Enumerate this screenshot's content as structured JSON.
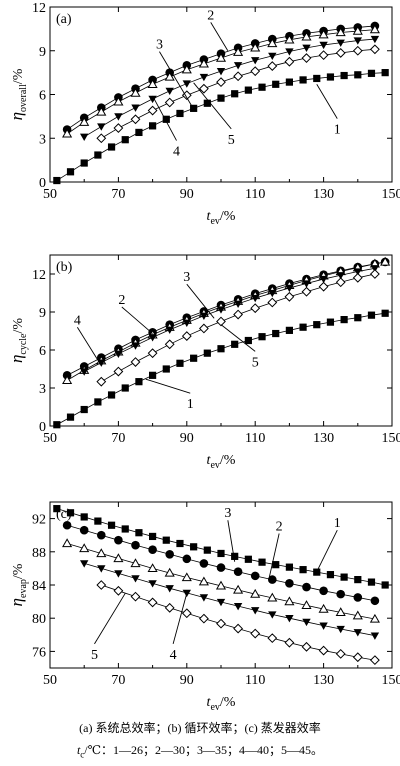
{
  "chart_data": [
    {
      "type": "scatter",
      "panel_label": "(a)",
      "xlabel_main": "t",
      "xlabel_sub": "ev",
      "xlabel_unit": "/%",
      "ylabel_main": "η",
      "ylabel_sub": "overall",
      "ylabel_unit": "/%",
      "xlim": [
        50,
        150
      ],
      "ylim": [
        0,
        12
      ],
      "xticks": [
        50,
        70,
        90,
        110,
        130,
        150
      ],
      "yticks": [
        0,
        3,
        6,
        9,
        12
      ],
      "series": [
        {
          "name": "1",
          "marker": "square-filled",
          "x": [
            52,
            56,
            60,
            64,
            68,
            72,
            76,
            80,
            84,
            88,
            92,
            96,
            100,
            104,
            108,
            112,
            116,
            120,
            124,
            128,
            132,
            136,
            140,
            144,
            148
          ],
          "y": [
            0.1,
            0.7,
            1.3,
            1.85,
            2.4,
            2.9,
            3.4,
            3.85,
            4.3,
            4.7,
            5.05,
            5.4,
            5.75,
            6.05,
            6.3,
            6.5,
            6.7,
            6.85,
            7.0,
            7.1,
            7.2,
            7.3,
            7.35,
            7.45,
            7.5
          ]
        },
        {
          "name": "2",
          "marker": "circle-filled",
          "x": [
            55,
            60,
            65,
            70,
            75,
            80,
            85,
            90,
            95,
            100,
            105,
            110,
            115,
            120,
            125,
            130,
            135,
            140,
            145
          ],
          "y": [
            3.6,
            4.4,
            5.1,
            5.8,
            6.4,
            7.0,
            7.5,
            8.0,
            8.4,
            8.8,
            9.2,
            9.5,
            9.8,
            10.0,
            10.2,
            10.35,
            10.5,
            10.6,
            10.7
          ]
        },
        {
          "name": "3",
          "marker": "triangle-open",
          "x": [
            55,
            60,
            65,
            70,
            75,
            80,
            85,
            90,
            95,
            100,
            105,
            110,
            115,
            120,
            125,
            130,
            135,
            140,
            145
          ],
          "y": [
            3.3,
            4.1,
            4.8,
            5.5,
            6.1,
            6.7,
            7.2,
            7.7,
            8.1,
            8.5,
            8.9,
            9.2,
            9.5,
            9.75,
            9.95,
            10.1,
            10.25,
            10.35,
            10.45
          ]
        },
        {
          "name": "4",
          "marker": "triangle-down-filled",
          "x": [
            60,
            65,
            70,
            75,
            80,
            85,
            90,
            95,
            100,
            105,
            110,
            115,
            120,
            125,
            130,
            135,
            140,
            145
          ],
          "y": [
            3.1,
            3.8,
            4.5,
            5.1,
            5.7,
            6.25,
            6.75,
            7.2,
            7.6,
            8.0,
            8.35,
            8.65,
            8.95,
            9.2,
            9.4,
            9.55,
            9.7,
            9.8
          ]
        },
        {
          "name": "5",
          "marker": "diamond-open",
          "x": [
            65,
            70,
            75,
            80,
            85,
            90,
            95,
            100,
            105,
            110,
            115,
            120,
            125,
            130,
            135,
            140,
            145
          ],
          "y": [
            3.0,
            3.7,
            4.3,
            4.9,
            5.45,
            5.95,
            6.4,
            6.85,
            7.25,
            7.6,
            7.95,
            8.25,
            8.5,
            8.7,
            8.85,
            9.0,
            9.1
          ]
        }
      ],
      "annotations": [
        {
          "text": "1",
          "x": 134,
          "y": 4.0,
          "to": [
            128,
            6.7
          ]
        },
        {
          "text": "2",
          "x": 97,
          "y": 10.6,
          "to": [
            102,
            9.0
          ]
        },
        {
          "text": "3",
          "x": 82,
          "y": 8.6,
          "to": [
            92,
            5.0
          ]
        },
        {
          "text": "4",
          "x": 87,
          "y": 2.5,
          "to": [
            80,
            5.9
          ]
        },
        {
          "text": "5",
          "x": 103,
          "y": 3.3,
          "to": [
            92,
            6.8
          ]
        }
      ]
    },
    {
      "type": "scatter",
      "panel_label": "(b)",
      "xlabel_main": "t",
      "xlabel_sub": "ev",
      "xlabel_unit": "/%",
      "ylabel_main": "η",
      "ylabel_sub": "cycle",
      "ylabel_unit": "/%",
      "xlim": [
        50,
        150
      ],
      "ylim": [
        0,
        13.5
      ],
      "xticks": [
        50,
        70,
        90,
        110,
        130,
        150
      ],
      "yticks": [
        0,
        3,
        6,
        9,
        12
      ],
      "series": [
        {
          "name": "1",
          "marker": "square-filled",
          "x": [
            52,
            56,
            60,
            64,
            68,
            72,
            76,
            80,
            84,
            88,
            92,
            96,
            100,
            104,
            108,
            112,
            116,
            120,
            124,
            128,
            132,
            136,
            140,
            144,
            148
          ],
          "y": [
            0.1,
            0.7,
            1.3,
            1.9,
            2.45,
            3.0,
            3.5,
            4.0,
            4.5,
            4.95,
            5.35,
            5.75,
            6.1,
            6.45,
            6.75,
            7.05,
            7.3,
            7.55,
            7.8,
            8.0,
            8.2,
            8.4,
            8.55,
            8.75,
            8.9
          ]
        },
        {
          "name": "2",
          "marker": "circle-filled",
          "x": [
            55,
            60,
            65,
            70,
            75,
            80,
            85,
            90,
            95,
            100,
            105,
            110,
            115,
            120,
            125,
            130,
            135,
            140,
            145,
            148
          ],
          "y": [
            4.0,
            4.7,
            5.4,
            6.1,
            6.8,
            7.4,
            8.0,
            8.55,
            9.05,
            9.55,
            10.0,
            10.45,
            10.85,
            11.25,
            11.6,
            11.95,
            12.25,
            12.55,
            12.8,
            12.95
          ]
        },
        {
          "name": "3",
          "marker": "triangle-open",
          "x": [
            55,
            60,
            65,
            70,
            75,
            80,
            85,
            90,
            95,
            100,
            105,
            110,
            115,
            120,
            125,
            130,
            135,
            140,
            145,
            148
          ],
          "y": [
            3.6,
            4.4,
            5.15,
            5.85,
            6.55,
            7.2,
            7.8,
            8.35,
            8.9,
            9.4,
            9.85,
            10.3,
            10.7,
            11.1,
            11.5,
            11.85,
            12.2,
            12.5,
            12.8,
            12.95
          ]
        },
        {
          "name": "4",
          "marker": "triangle-down-filled",
          "x": [
            60,
            65,
            70,
            75,
            80,
            85,
            90,
            95,
            100,
            105,
            110,
            115,
            120,
            125,
            130,
            135,
            140,
            145
          ],
          "y": [
            4.3,
            5.0,
            5.7,
            6.35,
            7.0,
            7.6,
            8.15,
            8.7,
            9.2,
            9.65,
            10.1,
            10.5,
            10.9,
            11.25,
            11.6,
            11.9,
            12.2,
            12.45
          ]
        },
        {
          "name": "5",
          "marker": "diamond-open",
          "x": [
            65,
            70,
            75,
            80,
            85,
            90,
            95,
            100,
            105,
            110,
            115,
            120,
            125,
            130,
            135,
            140,
            145
          ],
          "y": [
            3.5,
            4.3,
            5.05,
            5.75,
            6.45,
            7.1,
            7.7,
            8.25,
            8.8,
            9.3,
            9.75,
            10.2,
            10.6,
            11.0,
            11.35,
            11.7,
            12.0
          ]
        }
      ],
      "annotations": [
        {
          "text": "1",
          "x": 91,
          "y": 2.2,
          "to": [
            78,
            3.7
          ]
        },
        {
          "text": "2",
          "x": 71,
          "y": 9.0,
          "to": [
            80,
            7.3
          ]
        },
        {
          "text": "3",
          "x": 90,
          "y": 10.8,
          "to": [
            98,
            8.5
          ]
        },
        {
          "text": "4",
          "x": 58,
          "y": 7.4,
          "to": [
            64,
            5.2
          ]
        },
        {
          "text": "5",
          "x": 110,
          "y": 5.5,
          "to": [
            100,
            8.0
          ]
        }
      ]
    },
    {
      "type": "scatter",
      "panel_label": "(c)",
      "xlabel_main": "t",
      "xlabel_sub": "ev",
      "xlabel_unit": "/%",
      "ylabel_main": "η",
      "ylabel_sub": "evap",
      "ylabel_unit": "/%",
      "xlim": [
        50,
        150
      ],
      "ylim": [
        74,
        94
      ],
      "xticks": [
        50,
        70,
        90,
        110,
        130,
        150
      ],
      "yticks": [
        76,
        80,
        84,
        88,
        92
      ],
      "series": [
        {
          "name": "1",
          "marker": "square-filled",
          "x": [
            52,
            56,
            60,
            64,
            68,
            72,
            76,
            80,
            84,
            88,
            92,
            96,
            100,
            104,
            108,
            112,
            116,
            120,
            124,
            128,
            132,
            136,
            140,
            144,
            148
          ],
          "y": [
            93.2,
            92.7,
            92.2,
            91.7,
            91.2,
            90.75,
            90.3,
            89.85,
            89.4,
            89.0,
            88.6,
            88.2,
            87.8,
            87.45,
            87.1,
            86.75,
            86.45,
            86.15,
            85.85,
            85.55,
            85.25,
            84.95,
            84.65,
            84.35,
            84.0
          ]
        },
        {
          "name": "2",
          "marker": "circle-filled",
          "x": [
            55,
            60,
            65,
            70,
            75,
            80,
            85,
            90,
            95,
            100,
            105,
            110,
            115,
            120,
            125,
            130,
            135,
            140,
            145
          ],
          "y": [
            91.2,
            90.6,
            90.0,
            89.4,
            88.8,
            88.25,
            87.7,
            87.15,
            86.6,
            86.1,
            85.6,
            85.1,
            84.65,
            84.2,
            83.75,
            83.3,
            82.9,
            82.5,
            82.1
          ]
        },
        {
          "name": "3",
          "marker": "triangle-open",
          "x": [
            55,
            60,
            65,
            70,
            75,
            80,
            85,
            90,
            95,
            100,
            105,
            110,
            115,
            120,
            125,
            130,
            135,
            140,
            145
          ],
          "y": [
            89.0,
            88.4,
            87.8,
            87.2,
            86.6,
            86.0,
            85.45,
            84.9,
            84.4,
            83.9,
            83.4,
            82.9,
            82.45,
            82.0,
            81.55,
            81.1,
            80.7,
            80.3,
            79.9
          ]
        },
        {
          "name": "4",
          "marker": "triangle-down-filled",
          "x": [
            60,
            65,
            70,
            75,
            80,
            85,
            90,
            95,
            100,
            105,
            110,
            115,
            120,
            125,
            130,
            135,
            140,
            145
          ],
          "y": [
            86.6,
            86.0,
            85.4,
            84.8,
            84.2,
            83.6,
            83.05,
            82.5,
            81.95,
            81.45,
            80.95,
            80.45,
            80.0,
            79.55,
            79.1,
            78.7,
            78.3,
            77.9
          ]
        },
        {
          "name": "5",
          "marker": "diamond-open",
          "x": [
            65,
            70,
            75,
            80,
            85,
            90,
            95,
            100,
            105,
            110,
            115,
            120,
            125,
            130,
            135,
            140,
            145
          ],
          "y": [
            84.0,
            83.3,
            82.6,
            81.9,
            81.25,
            80.6,
            79.95,
            79.35,
            78.75,
            78.15,
            77.6,
            77.05,
            76.55,
            76.1,
            75.7,
            75.3,
            74.95
          ]
        }
      ],
      "annotations": [
        {
          "text": "1",
          "x": 134,
          "y": 90.0,
          "to": [
            128,
            85.6
          ]
        },
        {
          "text": "2",
          "x": 117,
          "y": 89.6,
          "to": [
            114,
            84.7
          ]
        },
        {
          "text": "3",
          "x": 102,
          "y": 91.2,
          "to": [
            104,
            86.8
          ]
        },
        {
          "text": "4",
          "x": 86,
          "y": 76.3,
          "to": [
            90,
            83.0
          ]
        },
        {
          "text": "5",
          "x": 63,
          "y": 76.3,
          "to": [
            72,
            83.0
          ]
        }
      ]
    }
  ],
  "caption": {
    "line1": "(a) 系统总效率；(b) 循环效率；(c) 蒸发器效率",
    "line2_prefix": "t",
    "line2_sub": "c",
    "line2_rest": "/℃：1—26；2—30；3—35；4—40；5—45。"
  }
}
